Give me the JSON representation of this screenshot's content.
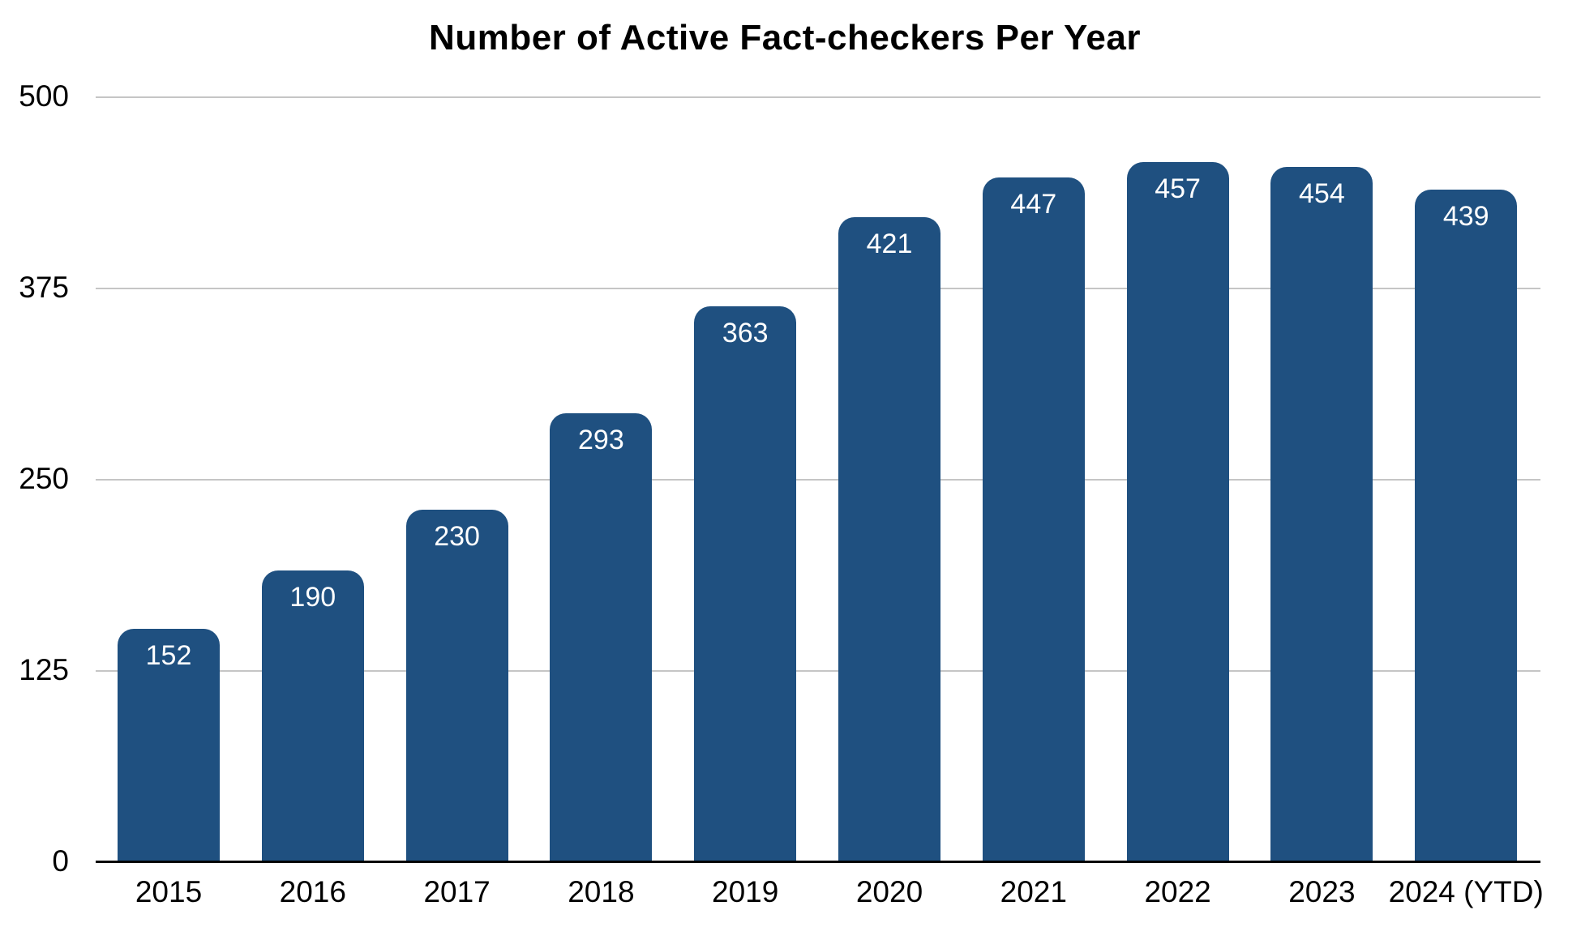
{
  "chart_data": {
    "type": "bar",
    "title": "Number of Active Fact-checkers Per Year",
    "categories": [
      "2015",
      "2016",
      "2017",
      "2018",
      "2019",
      "2020",
      "2021",
      "2022",
      "2023",
      "2024 (YTD)"
    ],
    "values": [
      152,
      190,
      230,
      293,
      363,
      421,
      447,
      457,
      454,
      439
    ],
    "xlabel": "",
    "ylabel": "",
    "ylim": [
      0,
      500
    ],
    "yticks": [
      0,
      125,
      250,
      375,
      500
    ],
    "grid": true,
    "legend": "none",
    "bar_color": "#1F5080",
    "value_label_color": "#FFFFFF",
    "axis_color": "#000000",
    "gridline_color": "#C5C5C5",
    "title_color": "#000000",
    "tick_label_color": "#000000"
  }
}
